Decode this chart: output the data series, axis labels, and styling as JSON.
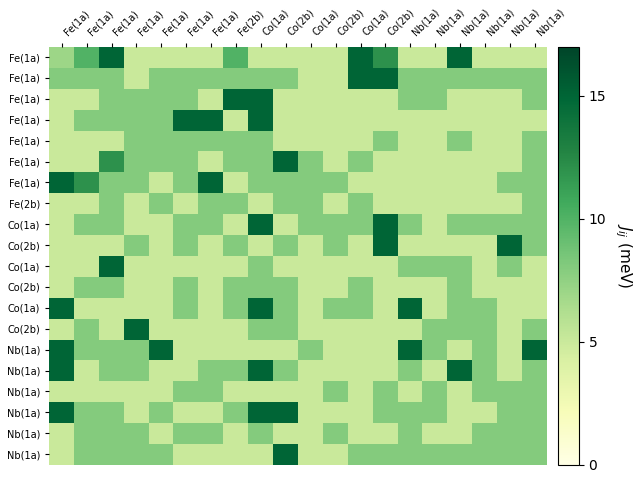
{
  "row_labels": [
    "Fe(1a)",
    "Fe(1a)",
    "Fe(1a)",
    "Fe(1a)",
    "Fe(1a)",
    "Fe(1a)",
    "Fe(1a)",
    "Fe(2b)",
    "Co(1a)",
    "Co(2b)",
    "Co(1a)",
    "Co(2b)",
    "Co(1a)",
    "Co(2b)",
    "Nb(1a)",
    "Nb(1a)",
    "Nb(1a)",
    "Nb(1a)",
    "Nb(1a)",
    "Nb(1a)"
  ],
  "col_labels": [
    "Fe(1a)",
    "Fe(1a)",
    "Fe(1a)",
    "Fe(1a)",
    "Fe(1a)",
    "Fe(1a)",
    "Fe(1a)",
    "Fe(2b)",
    "Co(1a)",
    "Co(2b)",
    "Co(1a)",
    "Co(2b)",
    "Co(1a)",
    "Co(2b)",
    "Nb(1a)",
    "Nb(1a)",
    "Nb(1a)",
    "Nb(1a)",
    "Nb(1a)",
    "Nb(1a)"
  ],
  "vmin": 0,
  "vmax": 17,
  "colorbar_ticks": [
    0,
    5,
    10,
    15
  ],
  "colorbar_label": "$J_{ij}$ (meV)",
  "cmap": "YlGn",
  "matrix": [
    [
      7,
      10,
      15,
      5,
      5,
      5,
      5,
      10,
      5,
      5,
      5,
      5,
      15,
      12,
      5,
      5,
      15,
      5,
      5,
      5
    ],
    [
      8,
      8,
      8,
      5,
      8,
      8,
      8,
      8,
      8,
      8,
      5,
      5,
      15,
      15,
      8,
      8,
      8,
      8,
      8,
      8
    ],
    [
      5,
      5,
      8,
      8,
      8,
      8,
      5,
      15,
      15,
      5,
      5,
      5,
      5,
      5,
      8,
      8,
      5,
      5,
      5,
      8
    ],
    [
      5,
      8,
      8,
      8,
      8,
      15,
      15,
      5,
      15,
      5,
      5,
      5,
      5,
      5,
      5,
      5,
      5,
      5,
      5,
      5
    ],
    [
      5,
      5,
      5,
      8,
      8,
      8,
      8,
      8,
      8,
      5,
      5,
      5,
      5,
      8,
      5,
      5,
      8,
      5,
      5,
      8
    ],
    [
      5,
      5,
      12,
      8,
      8,
      8,
      5,
      8,
      8,
      15,
      8,
      5,
      8,
      5,
      5,
      5,
      5,
      5,
      5,
      8
    ],
    [
      15,
      12,
      8,
      8,
      5,
      8,
      15,
      5,
      8,
      8,
      8,
      8,
      5,
      5,
      5,
      5,
      5,
      5,
      8,
      8
    ],
    [
      5,
      5,
      8,
      5,
      8,
      5,
      8,
      8,
      5,
      8,
      8,
      5,
      8,
      5,
      5,
      5,
      5,
      5,
      5,
      8
    ],
    [
      5,
      8,
      8,
      5,
      5,
      8,
      8,
      5,
      15,
      5,
      8,
      8,
      8,
      15,
      8,
      5,
      8,
      8,
      8,
      8
    ],
    [
      5,
      5,
      5,
      8,
      5,
      8,
      5,
      8,
      5,
      8,
      5,
      8,
      5,
      15,
      5,
      5,
      5,
      5,
      15,
      8
    ],
    [
      5,
      5,
      15,
      5,
      5,
      5,
      5,
      5,
      8,
      5,
      5,
      5,
      5,
      5,
      8,
      8,
      8,
      5,
      8,
      5
    ],
    [
      5,
      8,
      8,
      5,
      5,
      8,
      5,
      8,
      8,
      8,
      5,
      5,
      8,
      5,
      5,
      5,
      8,
      5,
      5,
      5
    ],
    [
      15,
      5,
      5,
      5,
      5,
      8,
      5,
      8,
      15,
      8,
      5,
      8,
      8,
      5,
      15,
      5,
      8,
      8,
      5,
      5
    ],
    [
      5,
      8,
      5,
      15,
      5,
      5,
      5,
      5,
      8,
      8,
      5,
      5,
      5,
      5,
      5,
      8,
      8,
      8,
      5,
      8
    ],
    [
      15,
      8,
      8,
      8,
      15,
      5,
      5,
      5,
      5,
      5,
      8,
      5,
      5,
      5,
      15,
      8,
      5,
      8,
      5,
      15
    ],
    [
      15,
      5,
      8,
      8,
      5,
      5,
      8,
      8,
      15,
      8,
      5,
      5,
      5,
      5,
      8,
      5,
      15,
      8,
      5,
      8
    ],
    [
      5,
      5,
      5,
      5,
      5,
      8,
      8,
      5,
      5,
      5,
      5,
      8,
      5,
      8,
      5,
      8,
      5,
      8,
      8,
      8
    ],
    [
      15,
      8,
      8,
      5,
      8,
      5,
      5,
      8,
      15,
      15,
      5,
      5,
      5,
      8,
      8,
      8,
      5,
      5,
      8,
      8
    ],
    [
      5,
      8,
      8,
      8,
      5,
      8,
      8,
      5,
      8,
      5,
      5,
      8,
      5,
      5,
      8,
      5,
      5,
      8,
      8,
      8
    ],
    [
      5,
      8,
      8,
      8,
      8,
      5,
      5,
      5,
      5,
      15,
      5,
      5,
      8,
      8,
      8,
      8,
      8,
      8,
      8,
      8
    ]
  ]
}
